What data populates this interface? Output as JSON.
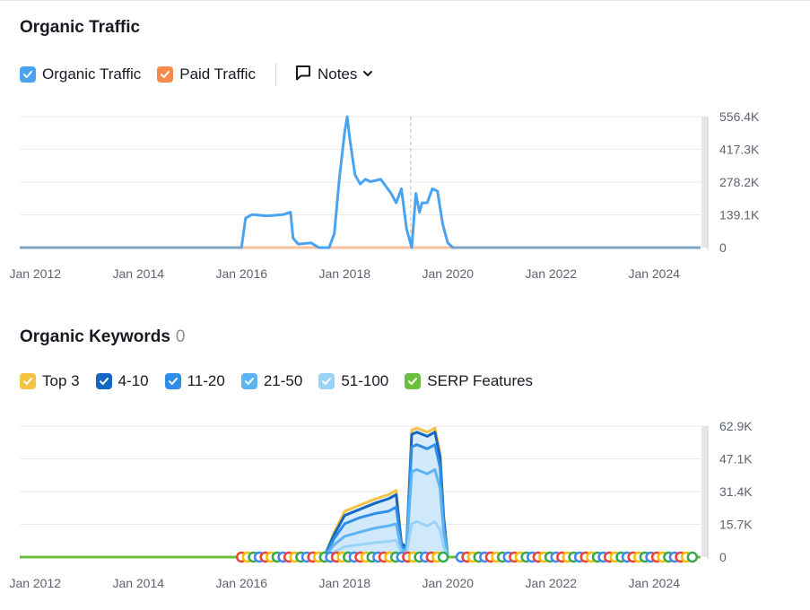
{
  "traffic_section": {
    "title": "Organic Traffic",
    "legend": {
      "organic": {
        "label": "Organic Traffic",
        "color": "#4aa3f0"
      },
      "paid": {
        "label": "Paid Traffic",
        "color": "#f58b4c"
      },
      "notes": {
        "label": "Notes"
      }
    }
  },
  "keywords_section": {
    "title": "Organic Keywords",
    "count": "0",
    "legend": [
      {
        "label": "Top 3",
        "color": "#f5c344"
      },
      {
        "label": "4-10",
        "color": "#1467c0"
      },
      {
        "label": "11-20",
        "color": "#2f8fe8"
      },
      {
        "label": "21-50",
        "color": "#5cb4f2"
      },
      {
        "label": "51-100",
        "color": "#9bd2f7"
      },
      {
        "label": "SERP Features",
        "color": "#6cbf3d"
      }
    ]
  },
  "chart_data": [
    {
      "type": "line",
      "title": "Organic Traffic",
      "x_tick_labels": [
        "Jan 2012",
        "Jan 2014",
        "Jan 2016",
        "Jan 2018",
        "Jan 2020",
        "Jan 2022",
        "Jan 2024"
      ],
      "y_tick_labels": [
        "556.4K",
        "417.3K",
        "278.2K",
        "139.1K",
        "0"
      ],
      "ylim": [
        0,
        556400
      ],
      "xlim": [
        2011.7,
        2024.9
      ],
      "grid": true,
      "series": [
        {
          "name": "Organic Traffic",
          "color": "#4aa3f0",
          "x": [
            2011.7,
            2016.0,
            2016.08,
            2016.2,
            2016.5,
            2016.8,
            2016.95,
            2017.0,
            2017.1,
            2017.35,
            2017.5,
            2017.7,
            2017.8,
            2017.9,
            2018.0,
            2018.05,
            2018.1,
            2018.2,
            2018.3,
            2018.4,
            2018.5,
            2018.7,
            2018.9,
            2019.0,
            2019.1,
            2019.2,
            2019.3,
            2019.38,
            2019.45,
            2019.5,
            2019.6,
            2019.7,
            2019.8,
            2019.9,
            2020.0,
            2020.1,
            2024.9
          ],
          "values": [
            0,
            0,
            125000,
            140000,
            135000,
            140000,
            150000,
            40000,
            15000,
            20000,
            0,
            0,
            60000,
            300000,
            490000,
            556000,
            460000,
            310000,
            270000,
            290000,
            280000,
            290000,
            230000,
            190000,
            250000,
            80000,
            0,
            230000,
            150000,
            190000,
            190000,
            250000,
            240000,
            100000,
            20000,
            0,
            0
          ]
        },
        {
          "name": "Paid Traffic",
          "color": "#f58b4c",
          "x": [
            2011.7,
            2024.9
          ],
          "values": [
            0,
            0
          ]
        }
      ]
    },
    {
      "type": "area",
      "title": "Organic Keywords",
      "x_tick_labels": [
        "Jan 2012",
        "Jan 2014",
        "Jan 2016",
        "Jan 2018",
        "Jan 2020",
        "Jan 2022",
        "Jan 2024"
      ],
      "y_tick_labels": [
        "62.9K",
        "47.1K",
        "31.4K",
        "15.7K",
        "0"
      ],
      "ylim": [
        0,
        62900
      ],
      "xlim": [
        2011.7,
        2024.9
      ],
      "grid": true,
      "x": [
        2017.6,
        2017.8,
        2018.0,
        2018.3,
        2018.6,
        2018.85,
        2019.0,
        2019.1,
        2019.2,
        2019.3,
        2019.4,
        2019.6,
        2019.75,
        2019.85,
        2019.92,
        2020.0
      ],
      "series": [
        {
          "name": "Top 3",
          "color": "#f5c344",
          "values": [
            0,
            12000,
            22000,
            25000,
            28000,
            30000,
            32000,
            7000,
            5000,
            61000,
            62000,
            60000,
            62000,
            50000,
            20000,
            0
          ]
        },
        {
          "name": "4-10",
          "color": "#1467c0",
          "values": [
            0,
            11000,
            20000,
            23000,
            26000,
            28000,
            30000,
            6500,
            4600,
            59000,
            60000,
            58000,
            60000,
            48000,
            19000,
            0
          ]
        },
        {
          "name": "11-20",
          "color": "#2f8fe8",
          "values": [
            0,
            9000,
            16000,
            19000,
            21000,
            22000,
            24000,
            5000,
            4000,
            53000,
            54000,
            52000,
            54000,
            43000,
            16000,
            0
          ]
        },
        {
          "name": "21-50",
          "color": "#5cb4f2",
          "values": [
            0,
            6000,
            10000,
            12000,
            14000,
            15000,
            16000,
            3500,
            3000,
            41000,
            42000,
            40000,
            42000,
            33000,
            12000,
            0
          ]
        },
        {
          "name": "51-100",
          "color": "#9bd2f7",
          "values": [
            0,
            2500,
            5000,
            6000,
            7000,
            7500,
            8000,
            2000,
            1500,
            16000,
            17000,
            15000,
            17000,
            13000,
            5000,
            0
          ]
        }
      ],
      "serp_features": {
        "name": "SERP Features",
        "color": "#6cbf3d",
        "values": [
          0,
          0
        ]
      }
    }
  ]
}
